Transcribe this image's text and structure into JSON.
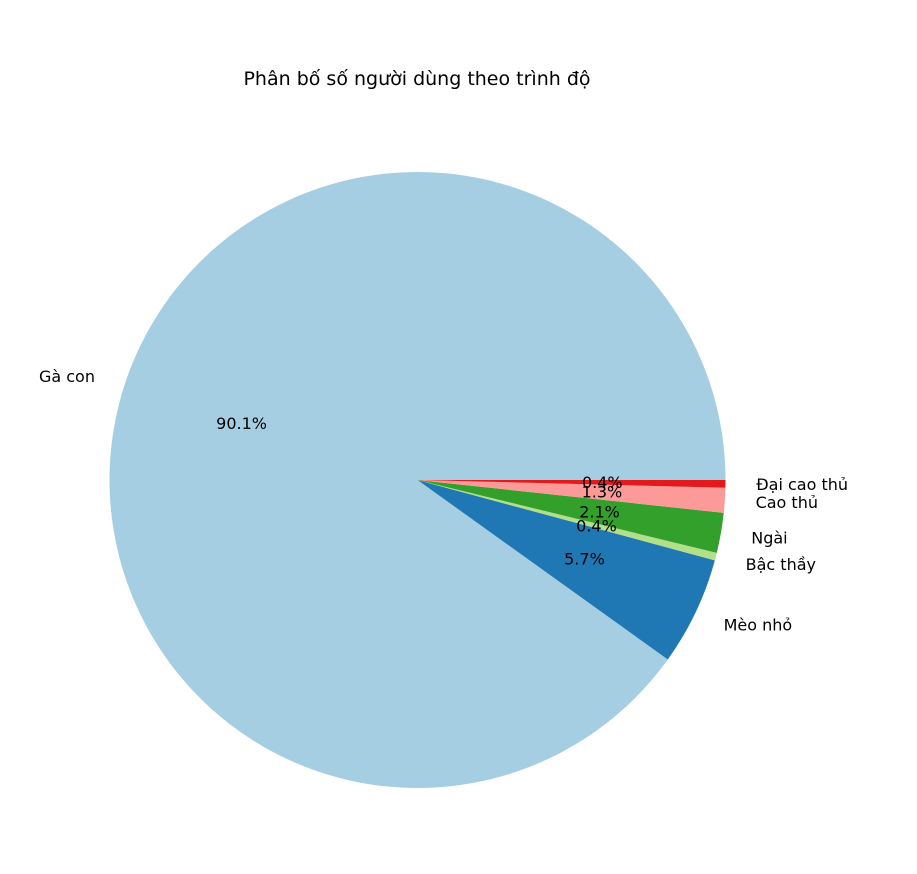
{
  "chart_data": {
    "type": "pie",
    "title": "Phân bố số người dùng theo trình độ",
    "slices": [
      {
        "label": "Gà con",
        "value": 90.1,
        "pct_label": "90.1%",
        "color": "#a6cee3"
      },
      {
        "label": "Mèo nhỏ",
        "value": 5.7,
        "pct_label": "5.7%",
        "color": "#1f78b4"
      },
      {
        "label": "Bậc thầy",
        "value": 0.4,
        "pct_label": "0.4%",
        "color": "#b2df8a"
      },
      {
        "label": "Ngài",
        "value": 2.1,
        "pct_label": "2.1%",
        "color": "#33a02c"
      },
      {
        "label": "Cao thủ",
        "value": 1.3,
        "pct_label": "1.3%",
        "color": "#fb9a99"
      },
      {
        "label": "Đại cao thủ",
        "value": 0.4,
        "pct_label": "0.4%",
        "color": "#e31a1c"
      }
    ],
    "start_angle_deg": 0,
    "direction": "counterclockwise",
    "legend": "none"
  }
}
